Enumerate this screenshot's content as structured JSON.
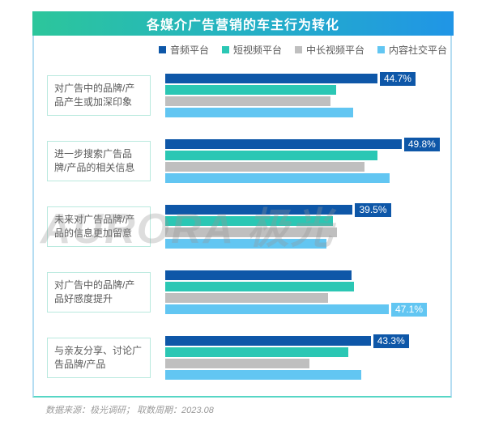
{
  "title": "各媒介广告营销的车主行为转化",
  "watermark": "AURORA 极光",
  "footer": "数据来源：极光调研；  取数周期：2023.08",
  "legend": [
    {
      "label": "音频平台",
      "color": "#0e57a8"
    },
    {
      "label": "短视频平台",
      "color": "#2bc7b4"
    },
    {
      "label": "中长视频平台",
      "color": "#bfbfbf"
    },
    {
      "label": "内容社交平台",
      "color": "#62c6f2"
    }
  ],
  "chart_data": {
    "type": "bar",
    "orientation": "horizontal",
    "unit": "%",
    "title": "各媒介广告营销的车主行为转化",
    "legend_position": "top",
    "xlim": [
      0,
      60
    ],
    "grid": false,
    "categories": [
      "对广告中的品牌/产品产生或加深印象",
      "进一步搜索广告品牌/产品的相关信息",
      "未来对广告品牌/产品的信息更加留意",
      "对广告中的品牌/产品好感度提升",
      "与亲友分享、讨论广告品牌/产品"
    ],
    "series": [
      {
        "name": "音频平台",
        "color": "#0e57a8",
        "values": [
          44.7,
          49.8,
          39.5,
          39.2,
          43.3
        ]
      },
      {
        "name": "短视频平台",
        "color": "#2bc7b4",
        "values": [
          36.0,
          44.7,
          35.3,
          39.8,
          38.6
        ]
      },
      {
        "name": "中长视频平台",
        "color": "#bfbfbf",
        "values": [
          34.8,
          42.0,
          36.2,
          34.3,
          30.4
        ]
      },
      {
        "name": "内容社交平台",
        "color": "#62c6f2",
        "values": [
          39.6,
          47.3,
          34.0,
          47.1,
          41.3
        ]
      }
    ],
    "data_labels": [
      {
        "category_index": 0,
        "series_index": 0,
        "text": "44.7%"
      },
      {
        "category_index": 1,
        "series_index": 0,
        "text": "49.8%"
      },
      {
        "category_index": 2,
        "series_index": 0,
        "text": "39.5%"
      },
      {
        "category_index": 3,
        "series_index": 3,
        "text": "47.1%"
      },
      {
        "category_index": 4,
        "series_index": 0,
        "text": "43.3%"
      }
    ]
  }
}
